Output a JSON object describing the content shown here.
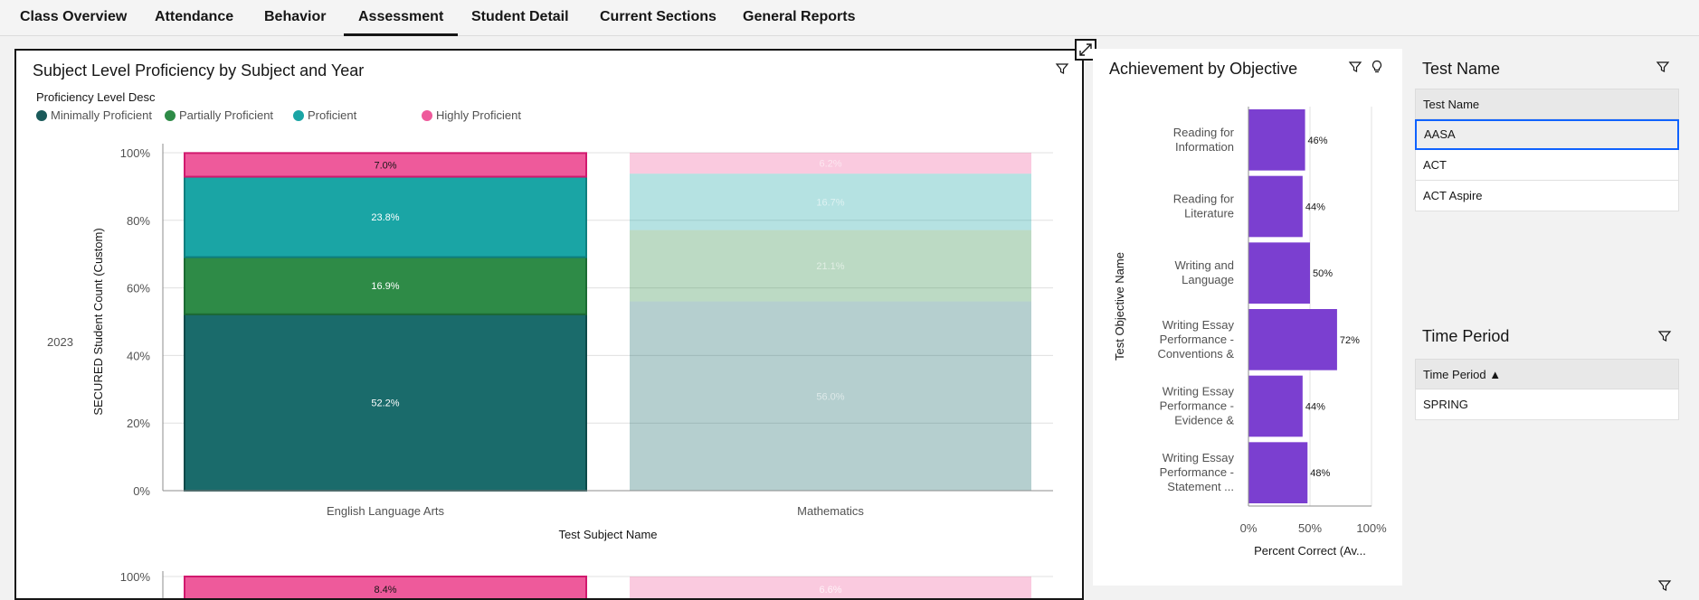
{
  "tabs": [
    {
      "label": "Class Overview",
      "active": false
    },
    {
      "label": "Attendance",
      "active": false
    },
    {
      "label": "Behavior",
      "active": false
    },
    {
      "label": "Assessment",
      "active": true
    },
    {
      "label": "Student Detail",
      "active": false
    },
    {
      "label": "Current Sections",
      "active": false
    },
    {
      "label": "General Reports",
      "active": false
    }
  ],
  "proficiency_panel": {
    "title": "Subject Level Proficiency by Subject and Year",
    "legend_title": "Proficiency Level Desc",
    "legend": [
      {
        "label": "Minimally Proficient",
        "color": "#1a6b6b"
      },
      {
        "label": "Partially Proficient",
        "color": "#2e8b47"
      },
      {
        "label": "Proficient",
        "color": "#1aa5a5"
      },
      {
        "label": "Highly Proficient",
        "color": "#ee5a9b"
      }
    ],
    "year_label": "2023",
    "ylabel": "SECURED Student Count (Custom)",
    "xlabel": "Test Subject Name",
    "y_ticks": [
      "100%",
      "80%",
      "60%",
      "40%",
      "20%",
      "0%"
    ]
  },
  "objective_panel": {
    "title": "Achievement by Objective",
    "ylabel": "Test Objective Name",
    "xlabel": "Percent Correct (Av...",
    "x_ticks": [
      "0%",
      "50%",
      "100%"
    ]
  },
  "test_name_panel": {
    "title": "Test Name",
    "header": "Test Name",
    "rows": [
      "AASA",
      "ACT",
      "ACT Aspire"
    ],
    "selected": "AASA"
  },
  "time_period_panel": {
    "title": "Time Period",
    "header": "Time Period ▲",
    "rows": [
      "SPRING"
    ]
  },
  "chart_data": [
    {
      "type": "bar",
      "stacked": true,
      "normalized": true,
      "title": "Subject Level Proficiency by Subject and Year",
      "xlabel": "Test Subject Name",
      "ylabel": "SECURED Student Count (Custom)",
      "ylim": [
        0,
        100
      ],
      "categories": [
        "English Language Arts",
        "Mathematics"
      ],
      "series": [
        {
          "name": "Minimally Proficient",
          "values": [
            52.2,
            56.0
          ],
          "labels": [
            "52.2%",
            "56.0%"
          ]
        },
        {
          "name": "Partially Proficient",
          "values": [
            16.9,
            21.1
          ],
          "labels": [
            "16.9%",
            "21.1%"
          ]
        },
        {
          "name": "Proficient",
          "values": [
            23.8,
            16.7
          ],
          "labels": [
            "23.8%",
            "16.7%"
          ]
        },
        {
          "name": "Highly Proficient",
          "values": [
            7.0,
            6.2
          ],
          "labels": [
            "7.0%",
            "6.2%"
          ]
        }
      ],
      "second_row_top_labels": [
        "8.4%",
        "6.6%"
      ],
      "highlighted_category": "English Language Arts",
      "grid": true
    },
    {
      "type": "bar",
      "orientation": "horizontal",
      "title": "Achievement by Objective",
      "xlabel": "Percent Correct (Av...",
      "ylabel": "Test Objective Name",
      "xlim": [
        0,
        100
      ],
      "categories": [
        [
          "Reading for",
          "Information"
        ],
        [
          "Reading for",
          "Literature"
        ],
        [
          "Writing and",
          "Language"
        ],
        [
          "Writing Essay",
          "Performance -",
          "Conventions &"
        ],
        [
          "Writing Essay",
          "Performance -",
          "Evidence &"
        ],
        [
          "Writing Essay",
          "Performance -",
          "Statement ..."
        ]
      ],
      "values": [
        46,
        44,
        50,
        72,
        44,
        48
      ],
      "bar_color": "#7b3fd0",
      "grid": true
    }
  ]
}
